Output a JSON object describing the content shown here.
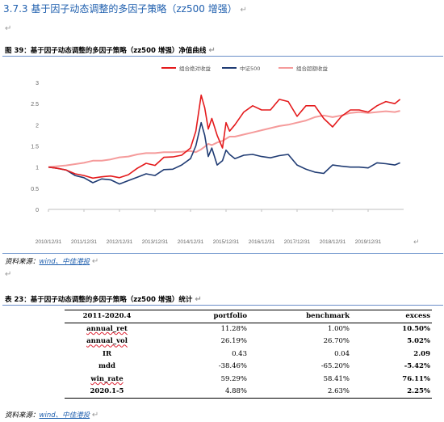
{
  "section": {
    "number": "3.7.3",
    "title": "基于因子动态调整的多因子策略（zz500 增强）"
  },
  "para_mark": "↵",
  "figure_caption": "图 39：基于因子动态调整的多因子策略（zz500 增强）净值曲线",
  "figure_source": {
    "prefix": "资料来源：",
    "text": "wind、中佳港投"
  },
  "table_caption": "表 23：基于因子动态调整的多因子策略（zz500 增强）统计",
  "table_source": {
    "prefix": "资料来源：",
    "text": "wind、中佳港投"
  },
  "table": {
    "headers": [
      "2011-2020.4",
      "portfolio",
      "benchmark",
      "excess"
    ],
    "rows": [
      [
        "annual_ret",
        "11.28%",
        "1.00%",
        "10.50%"
      ],
      [
        "annual_vol",
        "26.19%",
        "26.70%",
        "5.02%"
      ],
      [
        "IR",
        "0.43",
        "0.04",
        "2.09"
      ],
      [
        "mdd",
        "-38.46%",
        "-65.20%",
        "-5.42%"
      ],
      [
        "win_rate",
        "59.29%",
        "58.41%",
        "76.11%"
      ],
      [
        "2020.1-5",
        "4.88%",
        "2.63%",
        "2.25%"
      ]
    ]
  },
  "chart_data": {
    "type": "line",
    "title": "",
    "xlabel": "",
    "ylabel": "",
    "ylim": [
      0,
      3
    ],
    "yticks": [
      "0",
      "0.5",
      "1",
      "1.5",
      "2",
      "2.5",
      "3"
    ],
    "x_ticks": [
      "2010/12/31",
      "2011/12/31",
      "2012/12/31",
      "2013/12/31",
      "2014/12/31",
      "2015/12/31",
      "2016/12/31",
      "2017/12/31",
      "2018/12/31",
      "2019/12/31"
    ],
    "legend_position": "top",
    "colors": [
      "#e41a1c",
      "#1f3b73",
      "#f59b9b"
    ],
    "x": [
      2010.0,
      2010.25,
      2010.5,
      2010.75,
      2011.0,
      2011.25,
      2011.5,
      2011.75,
      2012.0,
      2012.25,
      2012.5,
      2012.75,
      2013.0,
      2013.25,
      2013.5,
      2013.75,
      2014.0,
      2014.15,
      2014.3,
      2014.4,
      2014.5,
      2014.6,
      2014.75,
      2014.9,
      2015.0,
      2015.1,
      2015.25,
      2015.5,
      2015.75,
      2016.0,
      2016.25,
      2016.5,
      2016.75,
      2017.0,
      2017.25,
      2017.5,
      2017.75,
      2018.0,
      2018.25,
      2018.5,
      2018.75,
      2019.0,
      2019.25,
      2019.5,
      2019.75,
      2019.9
    ],
    "series": [
      {
        "name": "组合绝对收益",
        "values": [
          1.0,
          0.97,
          0.93,
          0.84,
          0.8,
          0.74,
          0.77,
          0.79,
          0.75,
          0.82,
          0.97,
          1.09,
          1.04,
          1.23,
          1.24,
          1.28,
          1.45,
          1.85,
          2.7,
          2.4,
          1.9,
          2.15,
          1.75,
          1.45,
          2.05,
          1.85,
          2.0,
          2.3,
          2.45,
          2.35,
          2.35,
          2.6,
          2.55,
          2.2,
          2.45,
          2.45,
          2.15,
          1.95,
          2.2,
          2.35,
          2.35,
          2.3,
          2.45,
          2.55,
          2.5,
          2.6
        ]
      },
      {
        "name": "中证500",
        "values": [
          1.0,
          0.97,
          0.93,
          0.8,
          0.75,
          0.63,
          0.72,
          0.7,
          0.6,
          0.68,
          0.76,
          0.84,
          0.8,
          0.94,
          0.95,
          1.05,
          1.2,
          1.5,
          2.05,
          1.75,
          1.25,
          1.45,
          1.05,
          1.15,
          1.4,
          1.3,
          1.2,
          1.28,
          1.3,
          1.25,
          1.22,
          1.27,
          1.3,
          1.05,
          0.95,
          0.88,
          0.85,
          1.05,
          1.02,
          1.0,
          1.0,
          0.98,
          1.1,
          1.08,
          1.05,
          1.1
        ]
      },
      {
        "name": "组合超额收益",
        "values": [
          1.0,
          1.02,
          1.04,
          1.07,
          1.1,
          1.15,
          1.15,
          1.18,
          1.23,
          1.25,
          1.3,
          1.33,
          1.33,
          1.35,
          1.35,
          1.36,
          1.38,
          1.35,
          1.42,
          1.48,
          1.55,
          1.52,
          1.58,
          1.62,
          1.67,
          1.72,
          1.72,
          1.77,
          1.82,
          1.87,
          1.92,
          1.97,
          2.0,
          2.05,
          2.1,
          2.18,
          2.22,
          2.18,
          2.22,
          2.28,
          2.3,
          2.28,
          2.3,
          2.32,
          2.3,
          2.33
        ]
      }
    ]
  }
}
